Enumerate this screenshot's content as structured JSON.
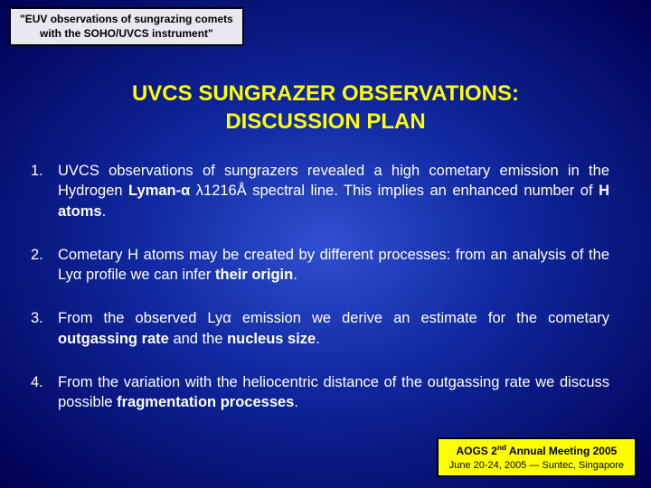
{
  "header": {
    "line1": "\"EUV observations of sungrazing comets",
    "line2": "with the SOHO/UVCS instrument\""
  },
  "title": {
    "line1": "UVCS SUNGRAZER OBSERVATIONS:",
    "line2": "DISCUSSION PLAN"
  },
  "items": [
    {
      "num": "1.",
      "pre": " UVCS observations of sungrazers revealed a high cometary emission in the Hydrogen ",
      "b1": "Lyman-α",
      "mid1": " λ1216Å spectral line. This implies an enhanced number of ",
      "b2": "H atoms",
      "post": "."
    },
    {
      "num": "2.",
      "pre": "Cometary H atoms may be created by different processes: from an analysis of the Lyα profile we can infer ",
      "b1": "their origin",
      "mid1": "",
      "b2": "",
      "post": "."
    },
    {
      "num": "3.",
      "pre": "From the observed Lyα emission we derive an estimate for the cometary  ",
      "b1": "outgassing rate",
      "mid1": " and the ",
      "b2": "nucleus size",
      "post": "."
    },
    {
      "num": "4.",
      "pre": "From the variation with the heliocentric distance of the outgassing rate we discuss possible ",
      "b1": "fragmentation processes",
      "mid1": "",
      "b2": "",
      "post": "."
    }
  ],
  "footer": {
    "title_pre": "AOGS 2",
    "title_sup": "nd",
    "title_post": " Annual Meeting 2005",
    "sub": "June 20-24, 2005 — Suntec, Singapore"
  },
  "style": {
    "bg_inner": "#3050d0",
    "bg_mid": "#1028a0",
    "bg_outer": "#000050",
    "title_color": "#ffff00",
    "text_color": "#ffffff",
    "header_bg": "#e8e8f0",
    "footer_bg": "#ffff00",
    "border_color": "#000000"
  }
}
